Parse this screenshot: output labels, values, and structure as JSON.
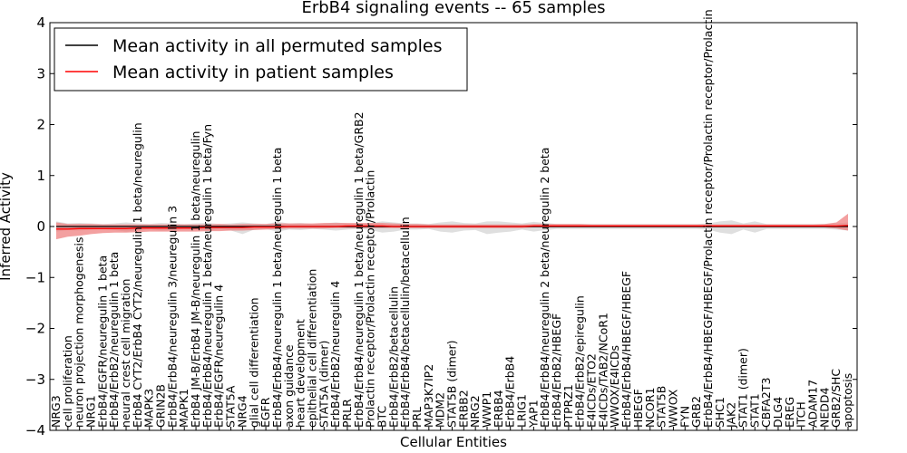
{
  "chart_data": {
    "type": "line",
    "title": "ErbB4 signaling events -- 65 samples",
    "xlabel": "Cellular Entities",
    "ylabel": "Inferred Activity",
    "ylim": [
      -4,
      4
    ],
    "yticks": [
      -4,
      -3,
      -2,
      -1,
      0,
      1,
      2,
      3,
      4
    ],
    "legend_position": "top-left",
    "grid": false,
    "categories": [
      "NRG3",
      "cell proliferation",
      "neuron projection morphogenesis",
      "NRG1",
      "ErbB4/EGFR/neuregulin 1 beta",
      "ErbB4/ErbB2/neuregulin 1 beta",
      "neural crest cell migration",
      "ErbB4 CYT2/ErbB4 CYT2/neuregulin 1 beta/neuregulin",
      "MAPK3",
      "GRIN2B",
      "ErbB4/ErbB4/neuregulin 3/neuregulin 3",
      "MAPK1",
      "ErbB4 JM-B/ErbB4 JM-B/neuregulin 1 beta/neuregulin",
      "ErbB4/ErbB4/neuregulin 1 beta/neuregulin 1 beta/Fyn",
      "ErbB4/EGFR/neuregulin 4",
      "STAT5A",
      "NRG4",
      "glial cell differentiation",
      "EGFR",
      "ErbB4/ErbB4/neuregulin 1 beta/neuregulin 1 beta",
      "axon guidance",
      "heart development",
      "epithelial cell differentiation",
      "STAT5A (dimer)",
      "ErbB4/ErbB2/neuregulin 4",
      "PRLR",
      "ErbB4/ErbB4/neuregulin 1 beta/neuregulin 1 beta/GRB2",
      "Prolactin receptor/Prolactin receptor/Prolactin",
      "BTC",
      "ErbB4/ErbB2/betacellulin",
      "ErbB4/ErbB4/betacellulin/betacellulin",
      "PRL",
      "MAP3K7IP2",
      "MDM2",
      "STAT5B (dimer)",
      "ERBB2",
      "NRG2",
      "WWP1",
      "ERBB4",
      "ErbB4/ErbB4",
      "LRIG1",
      "YAP1",
      "ErbB4/ErbB4/neuregulin 2 beta/neuregulin 2 beta",
      "ErbB4/ErbB2/HBEGF",
      "PTPRZ1",
      "ErbB4/ErbB2/epiregulin",
      "E4ICDs/ETO2",
      "E4ICDs/TAB2/NCoR1",
      "WWOX/E4ICDs",
      "ErbB4/ErbB4/HBEGF/HBEGF",
      "HBEGF",
      "NCOR1",
      "STAT5B",
      "WWOX",
      "FYN",
      "GRB2",
      "ErbB4/ErbB4/HBEGF/HBEGF/Prolactin receptor/Prolactin receptor/Prolactin",
      "SHC1",
      "JAK2",
      "STAT1 (dimer)",
      "STAT1",
      "CBFA2T3",
      "DLG4",
      "EREG",
      "ITCH",
      "ADAM17",
      "NEDD4",
      "GRB2/SHC",
      "apoptosis"
    ],
    "series": [
      {
        "name": "Mean activity in all permuted samples",
        "color": "#000000",
        "values": [
          0.0,
          0.0,
          0.0,
          0.0,
          0.0,
          0.0,
          0.0,
          0.0,
          0.0,
          0.0,
          0.0,
          0.0,
          0.0,
          0.0,
          0.0,
          0.0,
          0.0,
          0.0,
          0.0,
          0.0,
          0.0,
          0.0,
          0.0,
          0.0,
          0.0,
          0.0,
          0.0,
          0.0,
          0.0,
          0.0,
          0.0,
          0.0,
          0.0,
          0.0,
          0.0,
          0.0,
          0.0,
          0.0,
          0.0,
          0.0,
          0.0,
          0.0,
          0.0,
          0.0,
          0.0,
          0.0,
          0.0,
          0.0,
          0.0,
          0.0,
          0.0,
          0.0,
          0.0,
          0.0,
          0.0,
          0.0,
          0.0,
          0.0,
          0.0,
          0.0,
          0.0,
          0.0,
          0.0,
          0.0,
          0.0,
          0.0,
          0.0,
          0.0,
          0.0
        ]
      },
      {
        "name": "Mean activity in patient samples",
        "color": "#ff0000",
        "values": [
          -0.05,
          -0.05,
          -0.04,
          -0.04,
          -0.04,
          -0.04,
          -0.04,
          -0.03,
          -0.03,
          -0.03,
          -0.03,
          -0.03,
          -0.03,
          -0.02,
          -0.02,
          -0.02,
          -0.02,
          -0.01,
          -0.01,
          -0.01,
          0.0,
          0.0,
          0.0,
          0.0,
          0.0,
          0.01,
          0.01,
          0.01,
          0.01,
          0.0,
          0.0,
          0.0,
          0.0,
          0.0,
          0.0,
          0.0,
          0.0,
          0.0,
          0.0,
          0.0,
          0.0,
          0.01,
          0.01,
          0.01,
          0.01,
          0.01,
          0.01,
          0.01,
          0.01,
          0.01,
          0.01,
          0.01,
          0.01,
          0.01,
          0.01,
          0.01,
          0.01,
          0.01,
          0.01,
          0.01,
          0.01,
          0.01,
          0.01,
          0.01,
          0.01,
          0.01,
          0.01,
          0.01,
          0.02
        ]
      }
    ],
    "bands": [
      {
        "name": "permuted spread",
        "color": "#d4d4d4",
        "upper": [
          0.1,
          0.06,
          0.07,
          0.06,
          0.05,
          0.06,
          0.08,
          0.06,
          0.05,
          0.07,
          0.06,
          0.05,
          0.06,
          0.07,
          0.05,
          0.06,
          0.08,
          0.06,
          0.05,
          0.09,
          0.06,
          0.07,
          0.05,
          0.06,
          0.08,
          0.06,
          0.05,
          0.07,
          0.1,
          0.08,
          0.06,
          0.06,
          0.05,
          0.08,
          0.1,
          0.07,
          0.06,
          0.1,
          0.1,
          0.08,
          0.06,
          0.09,
          0.07,
          0.05,
          0.05,
          0.05,
          0.05,
          0.05,
          0.05,
          0.05,
          0.05,
          0.05,
          0.05,
          0.05,
          0.05,
          0.05,
          0.06,
          0.1,
          0.12,
          0.06,
          0.1,
          0.05,
          0.05,
          0.05,
          0.05,
          0.05,
          0.05,
          0.06,
          0.08
        ],
        "lower": [
          -0.1,
          -0.07,
          -0.08,
          -0.06,
          -0.05,
          -0.07,
          -0.1,
          -0.07,
          -0.05,
          -0.08,
          -0.07,
          -0.05,
          -0.06,
          -0.08,
          -0.05,
          -0.08,
          -0.15,
          -0.06,
          -0.05,
          -0.1,
          -0.06,
          -0.07,
          -0.05,
          -0.06,
          -0.08,
          -0.06,
          -0.05,
          -0.07,
          -0.12,
          -0.1,
          -0.06,
          -0.06,
          -0.05,
          -0.1,
          -0.12,
          -0.08,
          -0.07,
          -0.15,
          -0.12,
          -0.1,
          -0.06,
          -0.1,
          -0.07,
          -0.05,
          -0.05,
          -0.05,
          -0.05,
          -0.05,
          -0.05,
          -0.05,
          -0.05,
          -0.05,
          -0.05,
          -0.05,
          -0.05,
          -0.05,
          -0.06,
          -0.12,
          -0.15,
          -0.06,
          -0.12,
          -0.05,
          -0.05,
          -0.05,
          -0.05,
          -0.05,
          -0.05,
          -0.06,
          -0.08
        ]
      },
      {
        "name": "patient spread",
        "color": "#ee7777",
        "upper": [
          0.08,
          0.05,
          0.05,
          0.05,
          0.04,
          0.04,
          0.04,
          0.04,
          0.04,
          0.04,
          0.04,
          0.04,
          0.04,
          0.04,
          0.05,
          0.04,
          0.05,
          0.05,
          0.05,
          0.06,
          0.06,
          0.06,
          0.06,
          0.07,
          0.07,
          0.07,
          0.07,
          0.07,
          0.07,
          0.06,
          0.05,
          0.05,
          0.04,
          0.04,
          0.04,
          0.04,
          0.04,
          0.04,
          0.04,
          0.04,
          0.04,
          0.05,
          0.05,
          0.05,
          0.05,
          0.05,
          0.04,
          0.04,
          0.04,
          0.04,
          0.04,
          0.04,
          0.04,
          0.04,
          0.04,
          0.04,
          0.04,
          0.04,
          0.04,
          0.04,
          0.04,
          0.04,
          0.04,
          0.04,
          0.04,
          0.04,
          0.05,
          0.08,
          0.25
        ],
        "lower": [
          -0.25,
          -0.2,
          -0.18,
          -0.15,
          -0.13,
          -0.12,
          -0.12,
          -0.11,
          -0.1,
          -0.1,
          -0.1,
          -0.1,
          -0.1,
          -0.09,
          -0.09,
          -0.08,
          -0.08,
          -0.07,
          -0.06,
          -0.05,
          -0.04,
          -0.04,
          -0.04,
          -0.04,
          -0.03,
          -0.03,
          -0.03,
          -0.03,
          -0.03,
          -0.03,
          -0.03,
          -0.03,
          -0.03,
          -0.03,
          -0.03,
          -0.03,
          -0.03,
          -0.03,
          -0.03,
          -0.03,
          -0.03,
          -0.02,
          -0.02,
          -0.02,
          -0.02,
          -0.02,
          -0.02,
          -0.02,
          -0.02,
          -0.02,
          -0.02,
          -0.02,
          -0.02,
          -0.02,
          -0.02,
          -0.02,
          -0.02,
          -0.02,
          -0.02,
          -0.02,
          -0.02,
          -0.02,
          -0.02,
          -0.02,
          -0.02,
          -0.02,
          -0.02,
          -0.04,
          -0.08
        ]
      }
    ]
  }
}
